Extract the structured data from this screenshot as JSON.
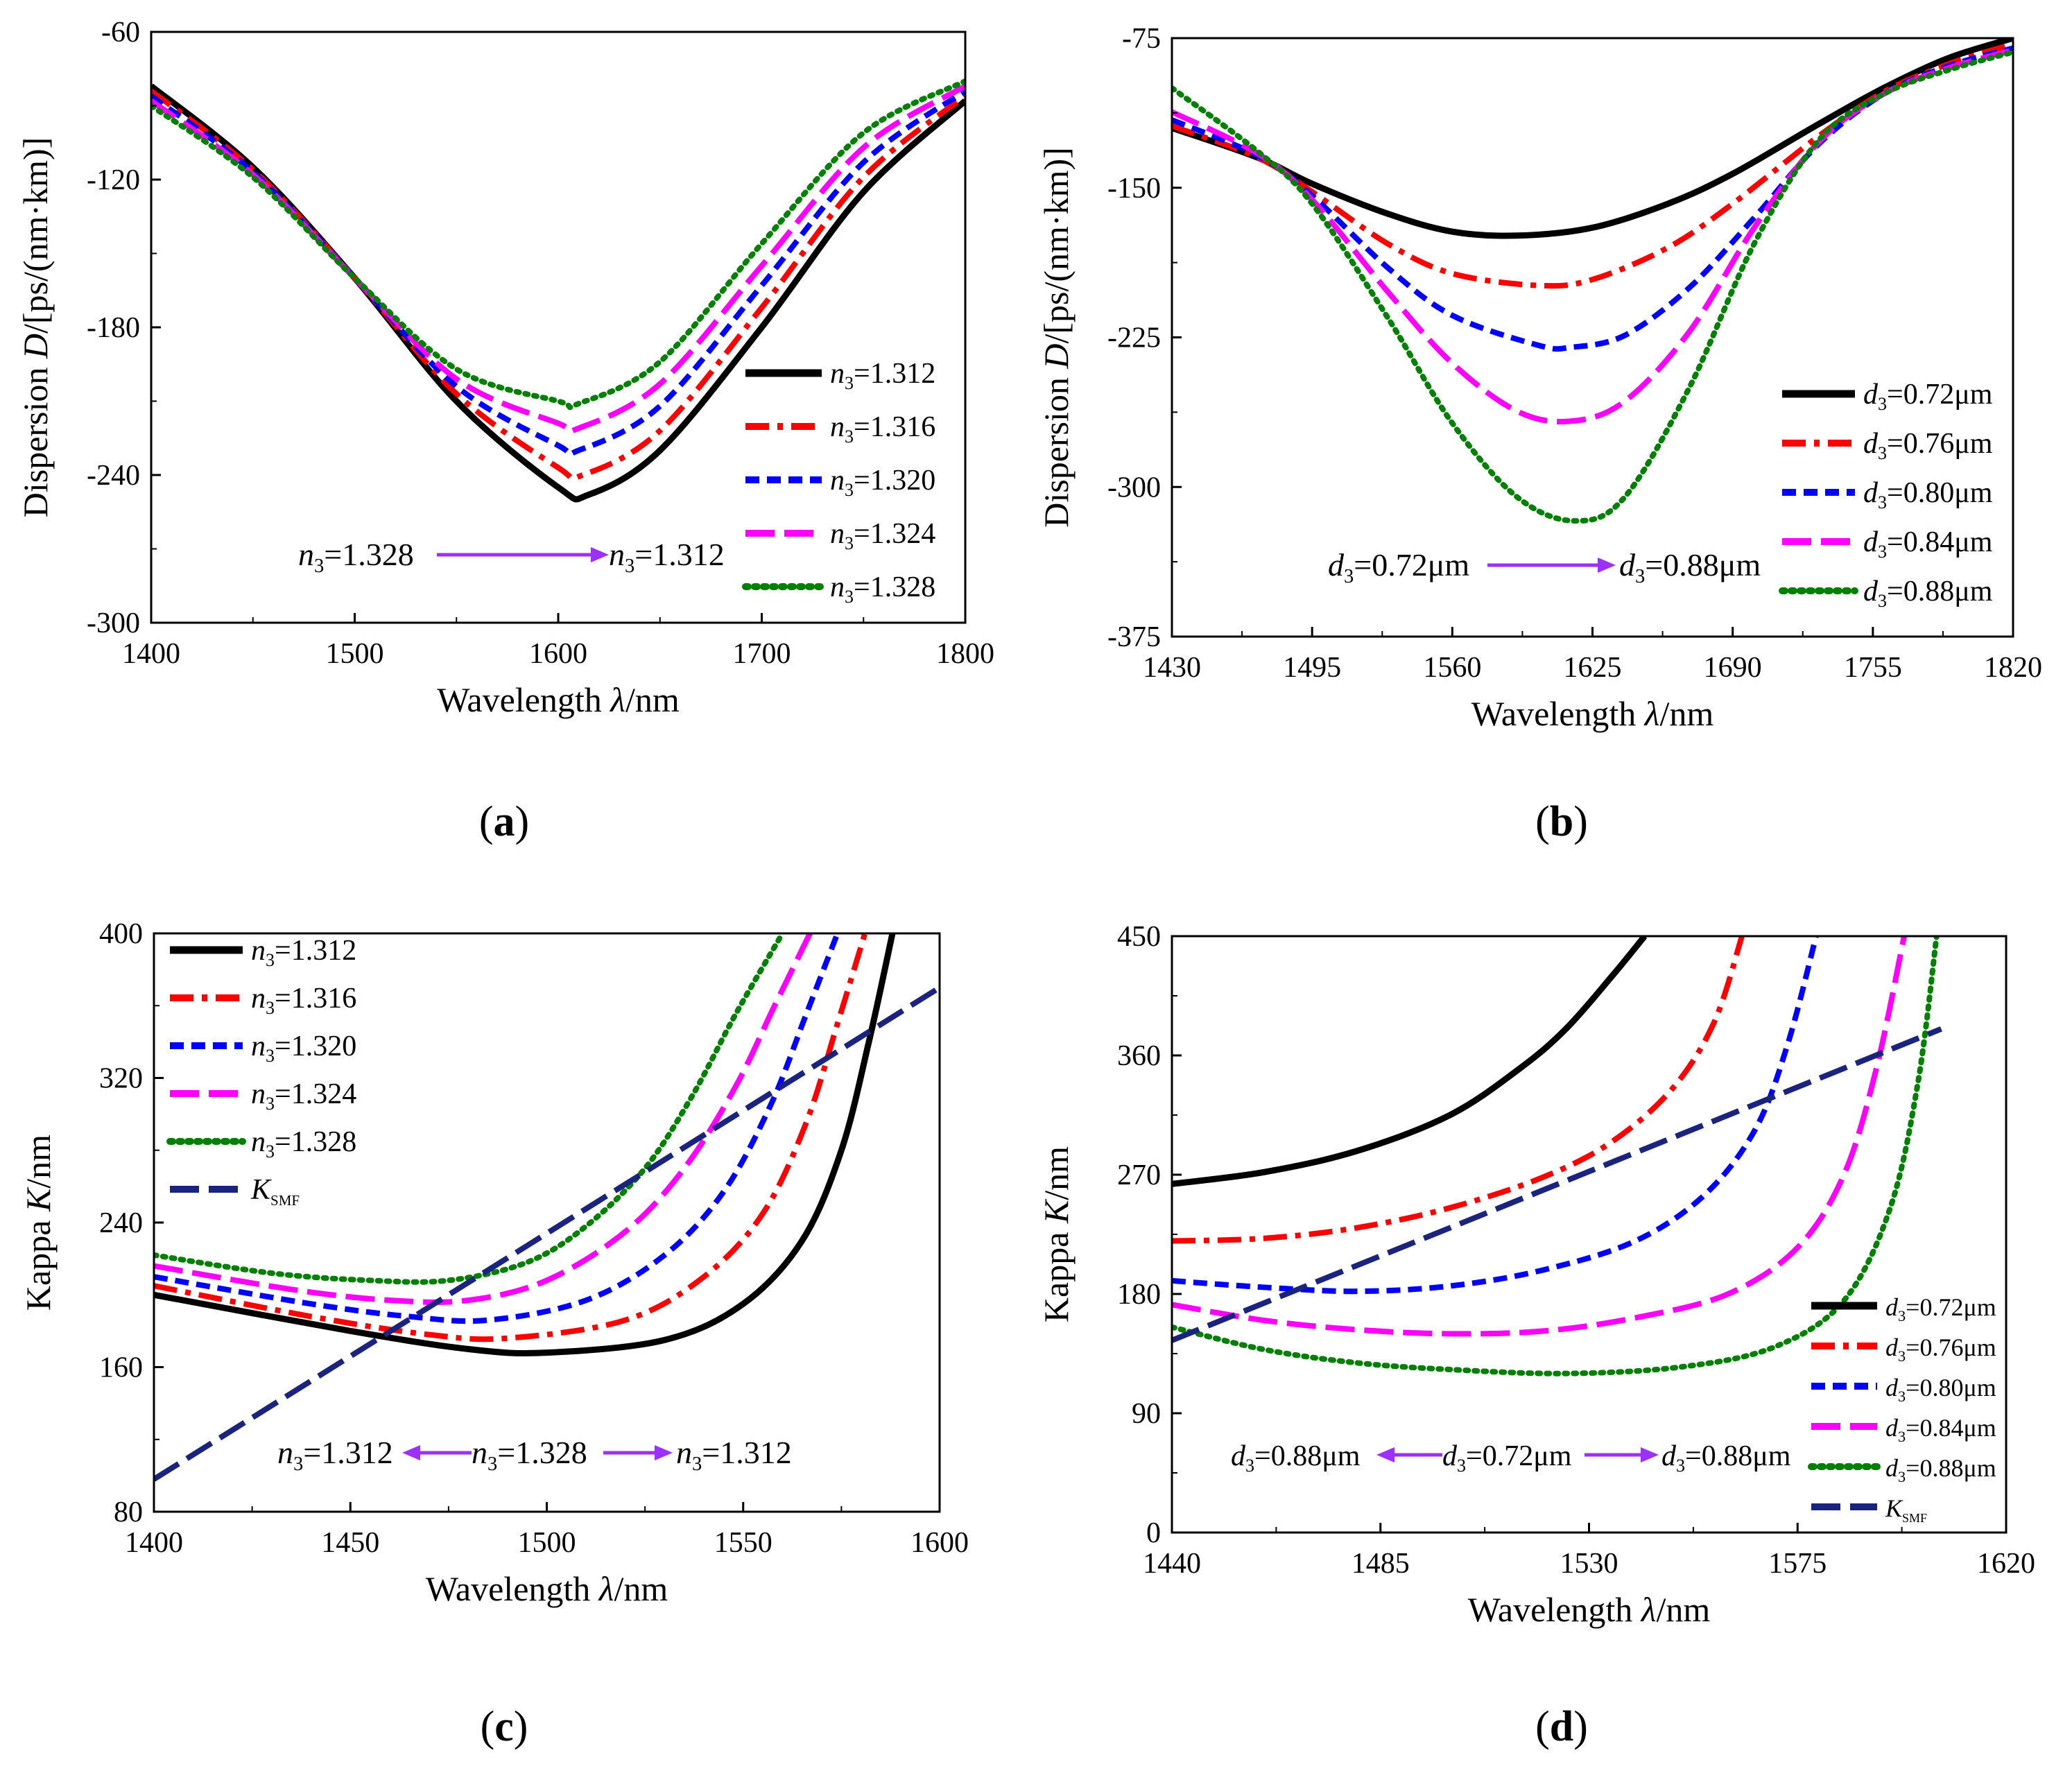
{
  "chart_data": [
    {
      "id": "a",
      "type": "line",
      "panel_label": "(a)",
      "xlabel": "Wavelength λ/nm",
      "ylabel": "Dispersion D/[ps/(nm·km)]",
      "xlim": [
        1400,
        1800
      ],
      "ylim": [
        -300,
        -60
      ],
      "xticks": [
        1400,
        1500,
        1600,
        1700,
        1800
      ],
      "yticks": [
        -300,
        -240,
        -180,
        -120,
        -60
      ],
      "annotation": {
        "left": "n3=1.328",
        "right": "n3=1.312"
      },
      "series": [
        {
          "name": "n3=1.312",
          "color": "#000000",
          "style": "solid",
          "x": [
            1400,
            1450,
            1500,
            1550,
            1600,
            1615,
            1650,
            1700,
            1750,
            1800
          ],
          "y": [
            -82,
            -115,
            -160,
            -210,
            -245,
            -248,
            -230,
            -180,
            -125,
            -88
          ]
        },
        {
          "name": "n3=1.316",
          "color": "#ff0000",
          "style": "dashdot",
          "x": [
            1400,
            1450,
            1500,
            1550,
            1600,
            1612,
            1650,
            1700,
            1750,
            1800
          ],
          "y": [
            -84,
            -116,
            -160,
            -207,
            -237,
            -240,
            -222,
            -172,
            -119,
            -86
          ]
        },
        {
          "name": "n3=1.320",
          "color": "#0000ff",
          "style": "dash",
          "x": [
            1400,
            1450,
            1500,
            1550,
            1600,
            1610,
            1650,
            1700,
            1750,
            1800
          ],
          "y": [
            -86,
            -117,
            -160,
            -204,
            -228,
            -230,
            -212,
            -163,
            -113,
            -84
          ]
        },
        {
          "name": "n3=1.324",
          "color": "#ff00ff",
          "style": "longdash",
          "x": [
            1400,
            1450,
            1500,
            1550,
            1600,
            1610,
            1650,
            1700,
            1750,
            1800
          ],
          "y": [
            -88,
            -118,
            -160,
            -201,
            -219,
            -221,
            -203,
            -155,
            -107,
            -82
          ]
        },
        {
          "name": "n3=1.328",
          "color": "#008000",
          "style": "dot",
          "x": [
            1400,
            1450,
            1500,
            1550,
            1600,
            1610,
            1650,
            1700,
            1750,
            1800
          ],
          "y": [
            -90,
            -119,
            -160,
            -197,
            -210,
            -211,
            -194,
            -146,
            -101,
            -80
          ]
        }
      ]
    },
    {
      "id": "b",
      "type": "line",
      "panel_label": "(b)",
      "xlabel": "Wavelength λ/nm",
      "ylabel": "Dispersion D/[ps/(nm·km)]",
      "xlim": [
        1430,
        1820
      ],
      "ylim": [
        -375,
        -75
      ],
      "xticks": [
        1430,
        1495,
        1560,
        1625,
        1690,
        1755,
        1820
      ],
      "yticks": [
        -375,
        -300,
        -225,
        -150,
        -75
      ],
      "annotation": {
        "left": "d3=0.72μm",
        "right": "d3=0.88μm"
      },
      "series": [
        {
          "name": "d3=0.72μm",
          "color": "#000000",
          "style": "solid",
          "x": [
            1430,
            1470,
            1495,
            1530,
            1560,
            1590,
            1625,
            1660,
            1690,
            1730,
            1760,
            1790,
            1820
          ],
          "y": [
            -120,
            -135,
            -148,
            -163,
            -172,
            -174,
            -170,
            -158,
            -143,
            -118,
            -100,
            -85,
            -75
          ]
        },
        {
          "name": "d3=0.76μm",
          "color": "#ff0000",
          "style": "dashdot",
          "x": [
            1430,
            1470,
            1495,
            1530,
            1560,
            1600,
            1625,
            1660,
            1690,
            1730,
            1760,
            1790,
            1820
          ],
          "y": [
            -119,
            -135,
            -152,
            -178,
            -193,
            -199,
            -196,
            -180,
            -158,
            -124,
            -102,
            -88,
            -78
          ]
        },
        {
          "name": "d3=0.80μm",
          "color": "#0000ff",
          "style": "dash",
          "x": [
            1430,
            1470,
            1495,
            1530,
            1560,
            1600,
            1615,
            1640,
            1670,
            1700,
            1730,
            1760,
            1790,
            1820
          ],
          "y": [
            -116,
            -134,
            -154,
            -190,
            -214,
            -229,
            -230,
            -224,
            -200,
            -165,
            -128,
            -103,
            -89,
            -80
          ]
        },
        {
          "name": "d3=0.84μm",
          "color": "#ff00ff",
          "style": "longdash",
          "x": [
            1430,
            1470,
            1495,
            1530,
            1560,
            1590,
            1615,
            1640,
            1670,
            1700,
            1730,
            1760,
            1790,
            1820
          ],
          "y": [
            -112,
            -133,
            -156,
            -202,
            -238,
            -262,
            -267,
            -257,
            -222,
            -170,
            -127,
            -103,
            -90,
            -81
          ]
        },
        {
          "name": "d3=0.88μm",
          "color": "#008000",
          "style": "dot",
          "x": [
            1430,
            1470,
            1495,
            1530,
            1560,
            1590,
            1617,
            1640,
            1670,
            1700,
            1730,
            1760,
            1790,
            1820
          ],
          "y": [
            -100,
            -132,
            -158,
            -215,
            -268,
            -305,
            -317,
            -305,
            -250,
            -178,
            -126,
            -103,
            -91,
            -82
          ]
        }
      ]
    },
    {
      "id": "c",
      "type": "line",
      "panel_label": "(c)",
      "xlabel": "Wavelength λ/nm",
      "ylabel": "Kappa K/nm",
      "xlim": [
        1400,
        1600
      ],
      "ylim": [
        80,
        400
      ],
      "xticks": [
        1400,
        1450,
        1500,
        1550,
        1600
      ],
      "yticks": [
        80,
        160,
        240,
        320,
        400
      ],
      "annotation": {
        "left": "n3=1.312",
        "center": "n3=1.328",
        "right": "n3=1.312"
      },
      "series": [
        {
          "name": "n3=1.312",
          "color": "#000000",
          "style": "solid",
          "x": [
            1400,
            1450,
            1480,
            1500,
            1530,
            1550,
            1565,
            1575,
            1582,
            1588
          ],
          "y": [
            200,
            180,
            170,
            168,
            175,
            195,
            230,
            280,
            340,
            400
          ]
        },
        {
          "name": "n3=1.316",
          "color": "#ff0000",
          "style": "dashdot",
          "x": [
            1400,
            1440,
            1470,
            1490,
            1520,
            1540,
            1555,
            1566,
            1574,
            1581
          ],
          "y": [
            205,
            188,
            178,
            176,
            186,
            210,
            245,
            295,
            350,
            400
          ]
        },
        {
          "name": "n3=1.320",
          "color": "#0000ff",
          "style": "dash",
          "x": [
            1400,
            1440,
            1465,
            1485,
            1510,
            1530,
            1545,
            1557,
            1566,
            1574
          ],
          "y": [
            210,
            195,
            188,
            186,
            197,
            222,
            257,
            305,
            355,
            400
          ]
        },
        {
          "name": "n3=1.324",
          "color": "#ff00ff",
          "style": "longdash",
          "x": [
            1400,
            1435,
            1460,
            1480,
            1500,
            1520,
            1535,
            1548,
            1558,
            1567
          ],
          "y": [
            216,
            203,
            197,
            197,
            208,
            235,
            270,
            315,
            360,
            400
          ]
        },
        {
          "name": "n3=1.328",
          "color": "#008000",
          "style": "dot",
          "x": [
            1400,
            1430,
            1455,
            1475,
            1495,
            1510,
            1525,
            1537,
            1548,
            1560
          ],
          "y": [
            222,
            212,
            208,
            208,
            218,
            238,
            270,
            310,
            355,
            400
          ]
        },
        {
          "name": "K_SMF",
          "color": "#1a237e",
          "style": "longdash",
          "x": [
            1400,
            1600
          ],
          "y": [
            98,
            370
          ]
        }
      ]
    },
    {
      "id": "d",
      "type": "line",
      "panel_label": "(d)",
      "xlabel": "Wavelength λ/nm",
      "ylabel": "Kappa K/nm",
      "xlim": [
        1440,
        1620
      ],
      "ylim": [
        0,
        450
      ],
      "xticks": [
        1440,
        1485,
        1530,
        1575,
        1620
      ],
      "yticks": [
        0,
        90,
        180,
        270,
        360,
        450
      ],
      "annotation": {
        "left": "d3=0.88μm",
        "center": "d3=0.72μm",
        "right": "d3=0.88μm"
      },
      "series": [
        {
          "name": "d3=0.72μm",
          "color": "#000000",
          "style": "solid",
          "x": [
            1440,
            1460,
            1480,
            1500,
            1515,
            1525,
            1535,
            1542
          ],
          "y": [
            263,
            272,
            288,
            315,
            350,
            380,
            420,
            450
          ]
        },
        {
          "name": "d3=0.76μm",
          "color": "#ff0000",
          "style": "dashdot",
          "x": [
            1440,
            1460,
            1480,
            1500,
            1520,
            1535,
            1548,
            1557,
            1563
          ],
          "y": [
            220,
            222,
            230,
            245,
            268,
            295,
            335,
            385,
            450
          ]
        },
        {
          "name": "d3=0.80μm",
          "color": "#0000ff",
          "style": "dash",
          "x": [
            1440,
            1460,
            1480,
            1500,
            1520,
            1540,
            1555,
            1566,
            1573,
            1579
          ],
          "y": [
            190,
            185,
            182,
            186,
            198,
            220,
            255,
            305,
            370,
            450
          ]
        },
        {
          "name": "d3=0.84μm",
          "color": "#ff00ff",
          "style": "longdash",
          "x": [
            1440,
            1460,
            1480,
            1500,
            1520,
            1540,
            1560,
            1575,
            1585,
            1592,
            1598
          ],
          "y": [
            172,
            160,
            153,
            150,
            152,
            162,
            180,
            215,
            270,
            350,
            450
          ]
        },
        {
          "name": "d3=0.88μm",
          "color": "#008000",
          "style": "dot",
          "x": [
            1440,
            1460,
            1480,
            1500,
            1525,
            1550,
            1570,
            1585,
            1595,
            1601,
            1605
          ],
          "y": [
            155,
            138,
            128,
            123,
            120,
            125,
            140,
            175,
            245,
            340,
            450
          ]
        },
        {
          "name": "K_SMF",
          "color": "#1a237e",
          "style": "longdash",
          "x": [
            1440,
            1606
          ],
          "y": [
            145,
            380
          ]
        }
      ]
    }
  ]
}
